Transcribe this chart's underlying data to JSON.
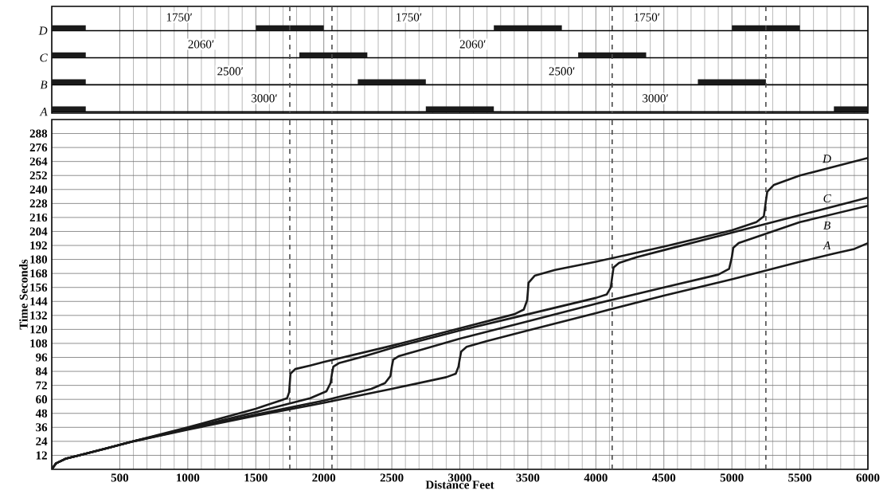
{
  "chart_data": [
    {
      "type": "bar",
      "orientation": "horizontal",
      "categories": [
        "D",
        "C",
        "B",
        "A"
      ],
      "series": [
        {
          "color": "#1a1a1a",
          "base": [
            0,
            0,
            0,
            0
          ],
          "values": [
            250,
            250,
            250,
            250
          ]
        },
        {
          "color": "#1a1a1a",
          "base": [
            1500,
            1820,
            2250,
            2750
          ],
          "values": [
            500,
            500,
            500,
            500
          ]
        },
        {
          "color": "#1a1a1a",
          "base": [
            3250,
            3870,
            4750,
            5750
          ],
          "values": [
            500,
            500,
            500,
            250
          ]
        },
        {
          "color": "#1a1a1a",
          "base": [
            5000,
            null,
            null,
            null
          ],
          "values": [
            500,
            null,
            null,
            null
          ]
        }
      ],
      "xlim": [
        0,
        6000
      ],
      "xticks": [
        500,
        1000,
        1500,
        2000,
        2500,
        3000,
        3500,
        4000,
        4500,
        5000,
        5500,
        6000
      ],
      "tick_labels": "y",
      "grid": true,
      "ref_lines": [
        {
          "axis": "x",
          "value": 1750,
          "line_style": "dashed"
        },
        {
          "axis": "x",
          "value": 2060,
          "line_style": "dashed"
        },
        {
          "axis": "x",
          "value": 4120,
          "line_style": "dashed"
        },
        {
          "axis": "x",
          "value": 5250,
          "line_style": "dashed"
        }
      ],
      "annotations": [
        "1750′",
        "1750′",
        "1750′",
        "2060′",
        "2060′",
        "2500′",
        "2500′",
        "3000′",
        "3000′"
      ]
    },
    {
      "type": "line",
      "xlabel": "Distance Feet",
      "ylabel": "Time Seconds",
      "xlim": [
        0,
        6000
      ],
      "ylim": [
        0,
        300
      ],
      "xticks": [
        500,
        1000,
        1500,
        2000,
        2500,
        3000,
        3500,
        4000,
        4500,
        5000,
        5500,
        6000
      ],
      "yticks": [
        12,
        24,
        36,
        48,
        60,
        72,
        84,
        96,
        108,
        120,
        132,
        144,
        156,
        168,
        180,
        192,
        204,
        216,
        228,
        240,
        252,
        264,
        276,
        288
      ],
      "grid": true,
      "ref_lines": [
        {
          "axis": "x",
          "value": 1750,
          "line_style": "dashed"
        },
        {
          "axis": "x",
          "value": 2060,
          "line_style": "dashed"
        },
        {
          "axis": "x",
          "value": 4120,
          "line_style": "dashed"
        },
        {
          "axis": "x",
          "value": 5250,
          "line_style": "dashed"
        }
      ],
      "series": [
        {
          "name": "D",
          "color": "#1a1a1a",
          "x": [
            0,
            30,
            100,
            200,
            400,
            600,
            1000,
            1500,
            1680,
            1730,
            1745,
            1750,
            1755,
            1790,
            1900,
            2000,
            2500,
            3000,
            3400,
            3470,
            3495,
            3500,
            3505,
            3550,
            3700,
            4000,
            4500,
            5000,
            5180,
            5235,
            5250,
            5260,
            5310,
            5500,
            6000
          ],
          "values": [
            0,
            5,
            9,
            12,
            18,
            24,
            36,
            52,
            59,
            61,
            66,
            74,
            82,
            86,
            89,
            92,
            106,
            121,
            133,
            137,
            145,
            152,
            160,
            166,
            171,
            178,
            191,
            205,
            212,
            217,
            230,
            238,
            244,
            252,
            267
          ]
        },
        {
          "name": "C",
          "color": "#1a1a1a",
          "x": [
            0,
            30,
            100,
            200,
            400,
            600,
            1000,
            1500,
            1900,
            2020,
            2050,
            2060,
            2070,
            2110,
            2300,
            2500,
            3000,
            3500,
            4000,
            4080,
            4110,
            4120,
            4130,
            4170,
            4300,
            4500,
            5000,
            5500,
            6000
          ],
          "values": [
            0,
            5,
            9,
            12,
            18,
            24,
            35,
            49,
            61,
            67,
            74,
            82,
            88,
            91,
            97,
            104,
            119,
            133,
            147,
            150,
            156,
            165,
            173,
            177,
            182,
            188,
            203,
            218,
            233
          ]
        },
        {
          "name": "B",
          "color": "#1a1a1a",
          "x": [
            0,
            30,
            100,
            200,
            400,
            600,
            1000,
            1500,
            2000,
            2350,
            2450,
            2490,
            2500,
            2510,
            2550,
            2700,
            3000,
            3500,
            4000,
            4500,
            4900,
            4980,
            5000,
            5010,
            5050,
            5200,
            5500,
            6000
          ],
          "values": [
            0,
            5,
            9,
            12,
            18,
            24,
            34.5,
            47,
            59,
            69,
            74,
            80,
            88,
            94,
            97,
            102,
            112,
            127,
            142,
            156,
            167,
            172,
            182,
            190,
            194,
            200,
            212,
            226
          ]
        },
        {
          "name": "A",
          "color": "#1a1a1a",
          "x": [
            0,
            30,
            100,
            200,
            400,
            600,
            1000,
            1500,
            2000,
            2500,
            2900,
            2970,
            2990,
            3000,
            3010,
            3050,
            3200,
            3500,
            4000,
            4500,
            5000,
            5500,
            5750,
            5900,
            6000
          ],
          "values": [
            0,
            5,
            9,
            12,
            18,
            24,
            34,
            46,
            57,
            69,
            79,
            82,
            88,
            95,
            101,
            105,
            110,
            119,
            134,
            149,
            163,
            178,
            185,
            189,
            194
          ]
        }
      ]
    }
  ]
}
